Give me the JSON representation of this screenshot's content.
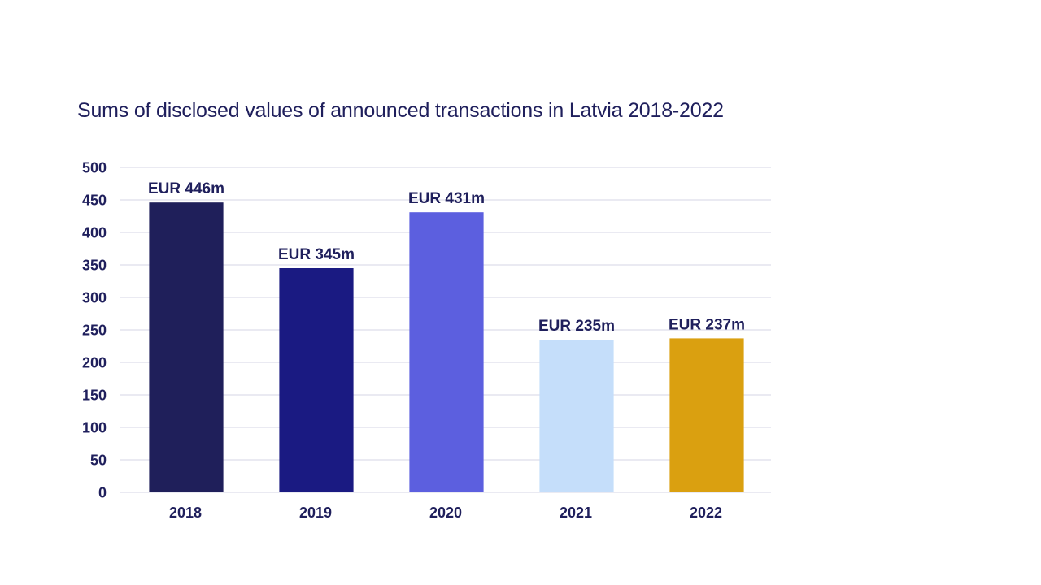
{
  "chart_data": {
    "type": "bar",
    "title": "Sums of disclosed values of announced transactions in Latvia 2018-2022",
    "xlabel": "",
    "ylabel": "",
    "categories": [
      "2018",
      "2019",
      "2020",
      "2021",
      "2022"
    ],
    "values": [
      446,
      345,
      431,
      235,
      237
    ],
    "data_labels": [
      "EUR 446m",
      "EUR 345m",
      "EUR 431m",
      "EUR 235m",
      "EUR 237m"
    ],
    "colors": [
      "#1f1f5a",
      "#1a1a82",
      "#5c5fdf",
      "#c5defa",
      "#daa010"
    ],
    "ylim": [
      0,
      500
    ],
    "yticks": [
      0,
      50,
      100,
      150,
      200,
      250,
      300,
      350,
      400,
      450,
      500
    ],
    "grid": true,
    "legend": "none"
  }
}
